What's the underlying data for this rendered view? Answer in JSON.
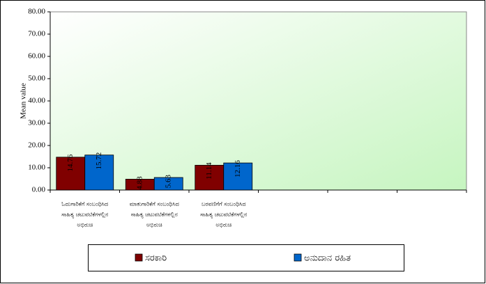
{
  "chart_data": {
    "type": "bar",
    "y_label": "Mean value",
    "categories": [
      [
        "ಓದುಗಾರಿಕೆಗೆ ಸಂಬಂಧಿಸಿದ",
        "ಸಾಹಿತ್ಯ ಚಟುವಟಿಕೆಗಳಲ್ಲಿನ",
        "ಅಭಿರುಚಿ"
      ],
      [
        "ಮಾತುಗಾರಿಕೆಗೆ ಸಂಬಂಧಿಸಿದ",
        "ಸಾಹಿತ್ಯ ಚಟುವಟಿಕೆಗಳಲ್ಲಿನ",
        "ಅಭಿರುಚಿ"
      ],
      [
        "ಬರವಣಿಗೆಗೆ ಸಂಬಂಧಿಸಿದ",
        "ಸಾಹಿತ್ಯ ಚಟುವಟಿಕೆಗಳಲ್ಲಿನ",
        "ಅಭಿರುಚಿ"
      ],
      null,
      null,
      null
    ],
    "series": [
      {
        "name": "ಸರಕಾರಿ",
        "color": "#800000",
        "values": [
          14.76,
          4.88,
          11.14,
          null,
          null,
          null
        ]
      },
      {
        "name": "ಅನುದಾನ ರಹಿತ",
        "color": "#0066cc",
        "values": [
          15.72,
          5.63,
          12.16,
          null,
          null,
          null
        ]
      }
    ],
    "ylim": [
      0,
      80
    ],
    "yticks": [
      {
        "value": 0,
        "label": "0.00"
      },
      {
        "value": 10,
        "label": "10.00"
      },
      {
        "value": 20,
        "label": "20.00"
      },
      {
        "value": 30,
        "label": "30.00"
      },
      {
        "value": 40,
        "label": "40.00"
      },
      {
        "value": 50,
        "label": "50.00"
      },
      {
        "value": 60,
        "label": "60.00"
      },
      {
        "value": 70,
        "label": "70.00"
      },
      {
        "value": 80,
        "label": "80.00"
      }
    ],
    "legend": "bottom"
  }
}
